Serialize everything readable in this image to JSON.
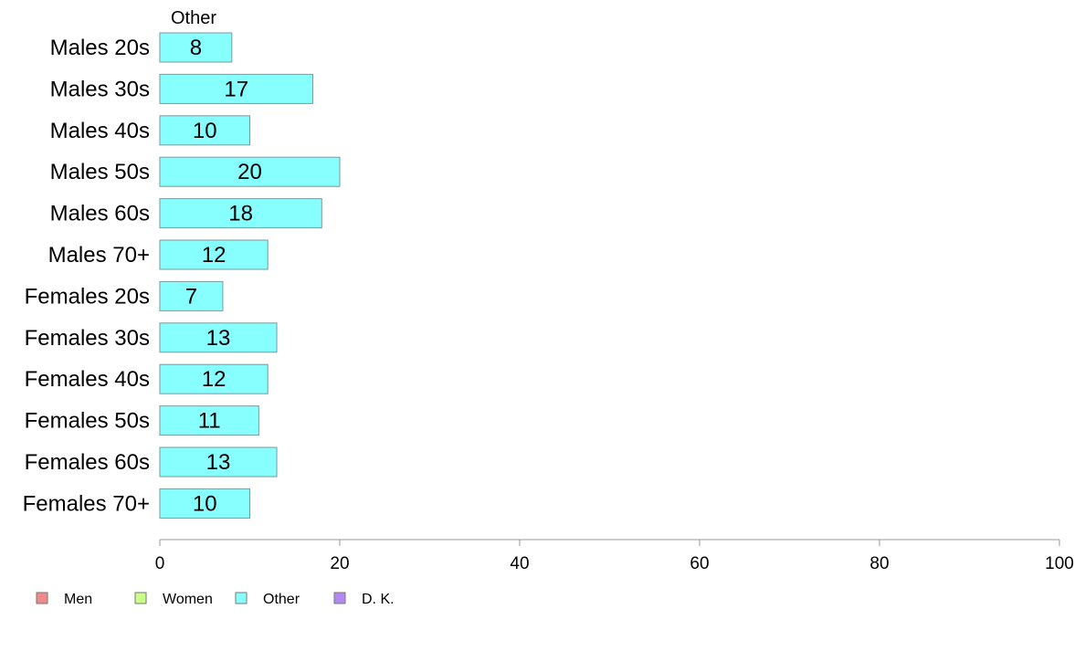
{
  "chart_data": {
    "type": "bar",
    "orientation": "horizontal",
    "column_header": "Other",
    "categories": [
      "Males 20s",
      "Males 30s",
      "Males 40s",
      "Males 50s",
      "Males 60s",
      "Males 70+",
      "Females 20s",
      "Females 30s",
      "Females 40s",
      "Females 50s",
      "Females 60s",
      "Females 70+"
    ],
    "series": [
      {
        "name": "Other",
        "values": [
          8,
          17,
          10,
          20,
          18,
          12,
          7,
          13,
          12,
          11,
          13,
          10
        ],
        "color": "#88ffff"
      }
    ],
    "xlim": [
      0,
      100
    ],
    "x_ticks": [
      0,
      20,
      40,
      60,
      80,
      100
    ],
    "grid": false,
    "legend": {
      "placement": "bottom-left",
      "entries": [
        {
          "label": "Men",
          "color": "#f08a8a"
        },
        {
          "label": "Women",
          "color": "#c8ff88"
        },
        {
          "label": "Other",
          "color": "#88ffff"
        },
        {
          "label": "D. K.",
          "color": "#b388f0"
        }
      ]
    }
  }
}
